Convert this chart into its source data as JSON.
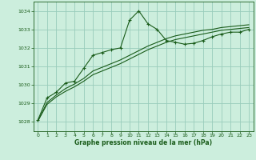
{
  "bg_color": "#cceedd",
  "grid_color": "#99ccbb",
  "line_color": "#1a5c1a",
  "xlabel": "Graphe pression niveau de la mer (hPa)",
  "figsize": [
    3.2,
    2.0
  ],
  "dpi": 100,
  "xlim": [
    -0.5,
    23.5
  ],
  "ylim": [
    1027.5,
    1034.5
  ],
  "yticks": [
    1028,
    1029,
    1030,
    1031,
    1032,
    1033,
    1034
  ],
  "xticks": [
    0,
    1,
    2,
    3,
    4,
    5,
    6,
    7,
    8,
    9,
    10,
    11,
    12,
    13,
    14,
    15,
    16,
    17,
    18,
    19,
    20,
    21,
    22,
    23
  ],
  "series1_x": [
    0,
    1,
    2,
    3,
    4,
    5,
    6,
    7,
    8,
    9,
    10,
    11,
    12,
    13,
    14,
    15,
    16,
    17,
    18,
    19,
    20,
    21,
    22,
    23
  ],
  "series1_y": [
    1028.1,
    1029.3,
    1029.6,
    1030.1,
    1030.2,
    1030.9,
    1031.6,
    1031.75,
    1031.9,
    1032.0,
    1033.5,
    1034.0,
    1033.3,
    1033.0,
    1032.4,
    1032.3,
    1032.2,
    1032.25,
    1032.4,
    1032.6,
    1032.75,
    1032.85,
    1032.85,
    1033.0
  ],
  "series2_x": [
    0,
    1,
    2,
    3,
    4,
    5,
    6,
    7,
    8,
    9,
    10,
    11,
    12,
    13,
    14,
    15,
    16,
    17,
    18,
    19,
    20,
    21,
    22,
    23
  ],
  "series2_y": [
    1028.05,
    1029.05,
    1029.45,
    1029.8,
    1030.05,
    1030.35,
    1030.75,
    1030.95,
    1031.15,
    1031.35,
    1031.6,
    1031.85,
    1032.1,
    1032.3,
    1032.5,
    1032.65,
    1032.75,
    1032.85,
    1032.95,
    1033.0,
    1033.1,
    1033.15,
    1033.2,
    1033.25
  ],
  "series3_x": [
    0,
    1,
    2,
    3,
    4,
    5,
    6,
    7,
    8,
    9,
    10,
    11,
    12,
    13,
    14,
    15,
    16,
    17,
    18,
    19,
    20,
    21,
    22,
    23
  ],
  "series3_y": [
    1028.05,
    1028.95,
    1029.35,
    1029.65,
    1029.9,
    1030.2,
    1030.55,
    1030.75,
    1030.95,
    1031.15,
    1031.4,
    1031.65,
    1031.9,
    1032.1,
    1032.3,
    1032.45,
    1032.55,
    1032.65,
    1032.75,
    1032.85,
    1032.95,
    1033.0,
    1033.05,
    1033.1
  ]
}
